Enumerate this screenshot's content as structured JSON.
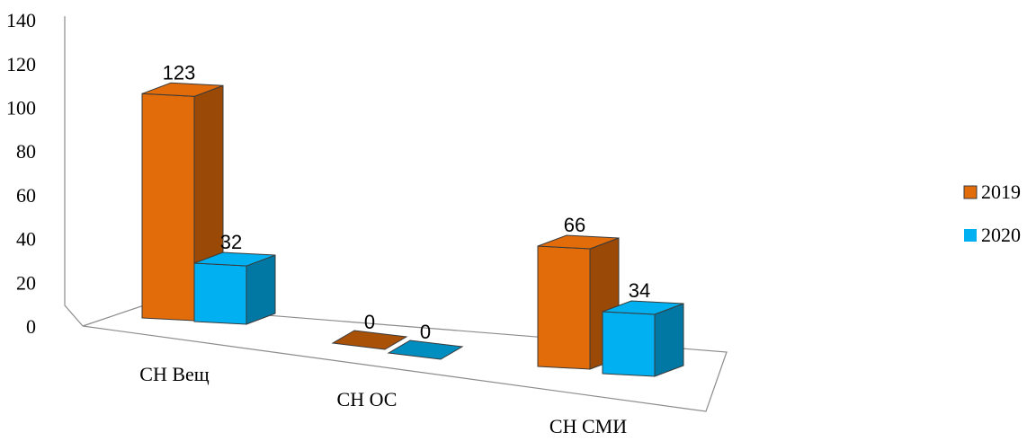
{
  "chart_data": {
    "type": "bar",
    "title": "",
    "xlabel": "",
    "ylabel": "",
    "categories": [
      "СН Вещ",
      "СН ОС",
      "СН СМИ"
    ],
    "series": [
      {
        "name": "2019",
        "values": [
          123,
          0,
          66
        ],
        "color": "#e36c0a"
      },
      {
        "name": "2020",
        "values": [
          32,
          0,
          34
        ],
        "color": "#00b0f0"
      }
    ],
    "ylim": [
      0,
      140
    ],
    "yticks": [
      "0",
      "20",
      "40",
      "60",
      "80",
      "100",
      "120",
      "140"
    ],
    "data_labels": [
      [
        "123",
        "0",
        "66"
      ],
      [
        "32",
        "0",
        "34"
      ]
    ],
    "legend_position": "right",
    "grid": false,
    "style": "3d-perspective"
  }
}
